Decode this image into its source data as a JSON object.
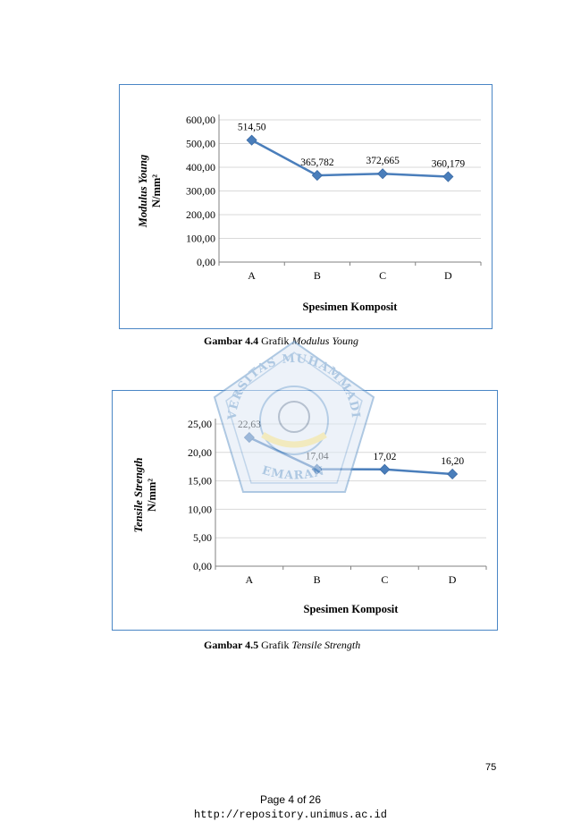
{
  "chart_data": [
    {
      "type": "line",
      "categories": [
        "A",
        "B",
        "C",
        "D"
      ],
      "values": [
        514.5,
        365.782,
        372.665,
        360.179
      ],
      "data_labels": [
        "514,50",
        "365,782",
        "372,665",
        "360,179"
      ],
      "yticks": [
        "0,00",
        "100,00",
        "200,00",
        "300,00",
        "400,00",
        "500,00",
        "600,00"
      ],
      "ylim": [
        0,
        600
      ],
      "ylabel_line1": "Modulus Young",
      "ylabel_line2": "N/mm²",
      "xlabel": "Spesimen Komposit",
      "grid": true,
      "color": "#4a7ebb"
    },
    {
      "type": "line",
      "categories": [
        "A",
        "B",
        "C",
        "D"
      ],
      "values": [
        22.63,
        17.04,
        17.02,
        16.2
      ],
      "data_labels": [
        "22,63",
        "17,04",
        "17,02",
        "16,20"
      ],
      "yticks": [
        "0,00",
        "5,00",
        "10,00",
        "15,00",
        "20,00",
        "25,00"
      ],
      "ylim": [
        0,
        25
      ],
      "ylabel_line1": "Tensile Strength",
      "ylabel_line2": "N/mm²",
      "xlabel": "Spesimen Komposit",
      "grid": true,
      "color": "#4a7ebb"
    }
  ],
  "captions": {
    "fig1_number": "Gambar 4.4",
    "fig1_word": "Grafik",
    "fig1_term": "Modulus Young",
    "fig2_number": "Gambar 4.5",
    "fig2_word": "Grafik",
    "fig2_term": "Tensile Strength"
  },
  "watermark": {
    "top_text": "UNIVERSITAS MUHAMMADIYAH",
    "bottom_text": "SEMARANG"
  },
  "footer": {
    "page_number": "75",
    "page_of": "Page 4 of 26",
    "url": "http://repository.unimus.ac.id"
  }
}
